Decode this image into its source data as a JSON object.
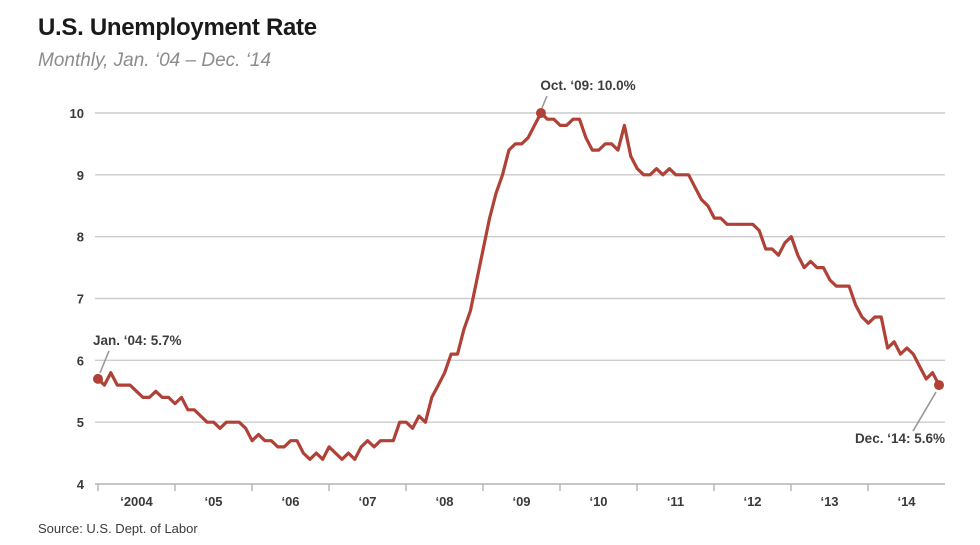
{
  "header": {
    "title": "U.S. Unemployment Rate",
    "subtitle": "Monthly, Jan. ‘04 – Dec. ‘14"
  },
  "footer": {
    "source": "Source: U.S. Dept. of Labor"
  },
  "chart_data": {
    "type": "line",
    "title": "U.S. Unemployment Rate",
    "subtitle": "Monthly, Jan. ‘04 – Dec. ‘14",
    "unit": "percent",
    "x_frequency": "monthly",
    "x_start": "Jan 2004",
    "x_end": "Dec 2014",
    "x_tick_labels": [
      "‘2004",
      "‘05",
      "‘06",
      "‘07",
      "‘08",
      "‘09",
      "‘10",
      "‘11",
      "‘12",
      "‘13",
      "‘14"
    ],
    "y_ticks": [
      4,
      5,
      6,
      7,
      8,
      9,
      10
    ],
    "ylim": [
      4,
      10
    ],
    "grid": "horizontal",
    "legend": "none",
    "series": [
      {
        "name": "U.S. unemployment rate",
        "values": [
          5.7,
          5.6,
          5.8,
          5.6,
          5.6,
          5.6,
          5.5,
          5.4,
          5.4,
          5.5,
          5.4,
          5.4,
          5.3,
          5.4,
          5.2,
          5.2,
          5.1,
          5.0,
          5.0,
          4.9,
          5.0,
          5.0,
          5.0,
          4.9,
          4.7,
          4.8,
          4.7,
          4.7,
          4.6,
          4.6,
          4.7,
          4.7,
          4.5,
          4.4,
          4.5,
          4.4,
          4.6,
          4.5,
          4.4,
          4.5,
          4.4,
          4.6,
          4.7,
          4.6,
          4.7,
          4.7,
          4.7,
          5.0,
          5.0,
          4.9,
          5.1,
          5.0,
          5.4,
          5.6,
          5.8,
          6.1,
          6.1,
          6.5,
          6.8,
          7.3,
          7.8,
          8.3,
          8.7,
          9.0,
          9.4,
          9.5,
          9.5,
          9.6,
          9.8,
          10.0,
          9.9,
          9.9,
          9.8,
          9.8,
          9.9,
          9.9,
          9.6,
          9.4,
          9.4,
          9.5,
          9.5,
          9.4,
          9.8,
          9.3,
          9.1,
          9.0,
          9.0,
          9.1,
          9.0,
          9.1,
          9.0,
          9.0,
          9.0,
          8.8,
          8.6,
          8.5,
          8.3,
          8.3,
          8.2,
          8.2,
          8.2,
          8.2,
          8.2,
          8.1,
          7.8,
          7.8,
          7.7,
          7.9,
          8.0,
          7.7,
          7.5,
          7.6,
          7.5,
          7.5,
          7.3,
          7.2,
          7.2,
          7.2,
          6.9,
          6.7,
          6.6,
          6.7,
          6.7,
          6.2,
          6.3,
          6.1,
          6.2,
          6.1,
          5.9,
          5.7,
          5.8,
          5.6
        ]
      }
    ],
    "annotations": [
      {
        "label": "Jan. ‘04: 5.7%",
        "month_index": 0,
        "value": 5.7,
        "anchor": "start",
        "label_offset": [
          -5,
          -34
        ],
        "leader": [
          [
            11,
            -28
          ],
          [
            2,
            -6
          ]
        ]
      },
      {
        "label": "Oct. ‘09: 10.0%",
        "month_index": 69,
        "value": 10.0,
        "anchor": "middle",
        "label_offset": [
          47,
          -23
        ],
        "leader": [
          [
            6,
            -17
          ],
          [
            1,
            -5
          ]
        ]
      },
      {
        "label": "Dec. ‘14: 5.6%",
        "month_index": 131,
        "value": 5.6,
        "anchor": "end",
        "label_offset": [
          6,
          58
        ],
        "leader": [
          [
            -26,
            46
          ],
          [
            -3,
            7
          ]
        ]
      }
    ],
    "colors": {
      "line": "#b04137",
      "dot": "#b04137",
      "grid": "#cccccc",
      "axis": "#b3b3b3",
      "annotation_text": "#3d3d3d",
      "leader": "#999999"
    }
  }
}
